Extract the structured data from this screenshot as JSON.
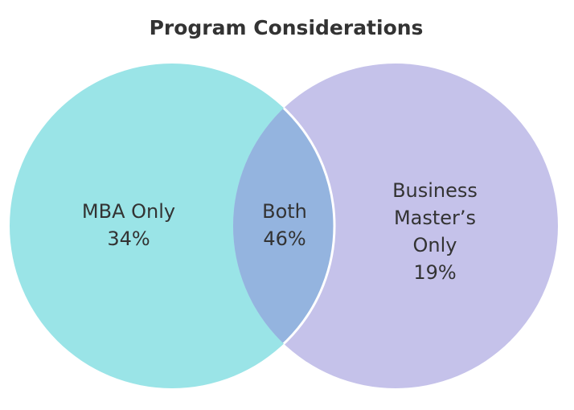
{
  "chart_data": {
    "type": "venn",
    "title": "Program Considerations",
    "sets": [
      {
        "name": "MBA Only",
        "value": "34%",
        "color": "#9ae4e7"
      },
      {
        "name": "Business Master’s Only",
        "value": "19%",
        "color": "#c5c2ea"
      }
    ],
    "intersection": {
      "name": "Both",
      "value": "46%",
      "color": "#94b4df"
    },
    "labels": {
      "left_line1": "MBA Only",
      "left_line2": "34%",
      "center_line1": "Both",
      "center_line2": "46%",
      "right_line1": "Business",
      "right_line2": "Master’s",
      "right_line3": "Only",
      "right_line4": "19%"
    }
  }
}
